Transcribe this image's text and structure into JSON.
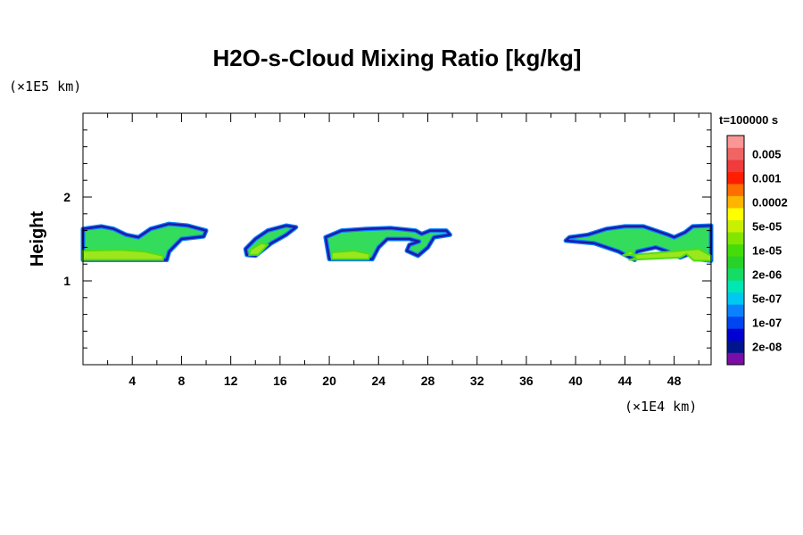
{
  "chart_data": {
    "type": "heatmap",
    "title": "H2O-s-Cloud Mixing Ratio [kg/kg]",
    "xlabel": "",
    "ylabel": "Height",
    "x_unit": "(×1E4 km)",
    "y_unit": "(×1E5 km)",
    "time_label": "t=100000 s",
    "xlim": [
      0,
      51
    ],
    "ylim": [
      0,
      3
    ],
    "x_ticks": [
      4,
      8,
      12,
      16,
      20,
      24,
      28,
      32,
      36,
      40,
      44,
      48
    ],
    "y_ticks": [
      1,
      2
    ],
    "colorbar": {
      "colors": [
        "#7a0ca8",
        "#00148c",
        "#0000d2",
        "#0046f0",
        "#0a82ff",
        "#00c8f0",
        "#00e6b4",
        "#14dc64",
        "#28d228",
        "#46dc0a",
        "#82e600",
        "#c8f000",
        "#ffff00",
        "#ffb400",
        "#ff6e00",
        "#ff1e00",
        "#f03c3c",
        "#f06464",
        "#fa9696"
      ],
      "labels": [
        "2e-08",
        "1e-07",
        "5e-07",
        "2e-06",
        "1e-05",
        "5e-05",
        "0.0002",
        "0.001",
        "0.005"
      ],
      "label_band_index": [
        1,
        3,
        5,
        7,
        9,
        11,
        13,
        15,
        17
      ]
    },
    "cloud_regions": [
      {
        "name": "cloud-1",
        "outline": [
          [
            0,
            1.25
          ],
          [
            0,
            1.62
          ],
          [
            1.5,
            1.65
          ],
          [
            2.5,
            1.62
          ],
          [
            3.5,
            1.55
          ],
          [
            4.5,
            1.52
          ],
          [
            5.5,
            1.62
          ],
          [
            7,
            1.68
          ],
          [
            8.5,
            1.66
          ],
          [
            10,
            1.6
          ],
          [
            9.8,
            1.53
          ],
          [
            8,
            1.5
          ],
          [
            7,
            1.35
          ],
          [
            6.8,
            1.25
          ]
        ],
        "core": [
          [
            0,
            1.25
          ],
          [
            0,
            1.36
          ],
          [
            3,
            1.37
          ],
          [
            5,
            1.35
          ],
          [
            6.5,
            1.3
          ],
          [
            6.5,
            1.25
          ]
        ]
      },
      {
        "name": "cloud-2",
        "outline": [
          [
            13.3,
            1.31
          ],
          [
            13.2,
            1.38
          ],
          [
            14,
            1.5
          ],
          [
            15,
            1.6
          ],
          [
            16.5,
            1.66
          ],
          [
            17.3,
            1.64
          ],
          [
            16.5,
            1.55
          ],
          [
            15.3,
            1.45
          ],
          [
            14,
            1.3
          ]
        ],
        "core": [
          [
            13.5,
            1.31
          ],
          [
            13.6,
            1.37
          ],
          [
            14.5,
            1.45
          ],
          [
            15,
            1.43
          ],
          [
            14.2,
            1.31
          ]
        ]
      },
      {
        "name": "cloud-3",
        "outline": [
          [
            20,
            1.26
          ],
          [
            19.7,
            1.52
          ],
          [
            21,
            1.6
          ],
          [
            23,
            1.62
          ],
          [
            25,
            1.63
          ],
          [
            27,
            1.6
          ],
          [
            27.5,
            1.56
          ],
          [
            28.2,
            1.6
          ],
          [
            29.5,
            1.6
          ],
          [
            29.8,
            1.55
          ],
          [
            28.5,
            1.52
          ],
          [
            28,
            1.4
          ],
          [
            27.2,
            1.3
          ],
          [
            26.3,
            1.36
          ],
          [
            26.5,
            1.43
          ],
          [
            27.3,
            1.47
          ],
          [
            26.5,
            1.5
          ],
          [
            24.7,
            1.5
          ],
          [
            24,
            1.4
          ],
          [
            23.5,
            1.26
          ]
        ],
        "core": [
          [
            20.2,
            1.26
          ],
          [
            20.2,
            1.34
          ],
          [
            22,
            1.36
          ],
          [
            23.3,
            1.32
          ],
          [
            23.2,
            1.26
          ]
        ]
      },
      {
        "name": "cloud-4",
        "outline": [
          [
            39.2,
            1.48
          ],
          [
            39.5,
            1.52
          ],
          [
            41,
            1.55
          ],
          [
            42.5,
            1.62
          ],
          [
            44,
            1.65
          ],
          [
            45.5,
            1.65
          ],
          [
            46.5,
            1.6
          ],
          [
            47.5,
            1.55
          ],
          [
            48,
            1.52
          ],
          [
            48.9,
            1.58
          ],
          [
            49.5,
            1.65
          ],
          [
            51,
            1.66
          ],
          [
            51,
            1.24
          ],
          [
            50,
            1.26
          ],
          [
            49.2,
            1.32
          ],
          [
            48.5,
            1.28
          ],
          [
            47.5,
            1.35
          ],
          [
            46.5,
            1.4
          ],
          [
            45,
            1.35
          ],
          [
            44.8,
            1.25
          ],
          [
            43.5,
            1.35
          ],
          [
            41.5,
            1.45
          ]
        ],
        "core": [
          [
            43.8,
            1.3
          ],
          [
            44.5,
            1.36
          ],
          [
            44.9,
            1.27
          ],
          [
            44.3,
            1.25
          ],
          [
            48.5,
            1.28
          ],
          [
            49,
            1.32
          ],
          [
            49.6,
            1.24
          ],
          [
            51,
            1.24
          ],
          [
            51,
            1.3
          ],
          [
            50,
            1.38
          ]
        ]
      }
    ]
  }
}
